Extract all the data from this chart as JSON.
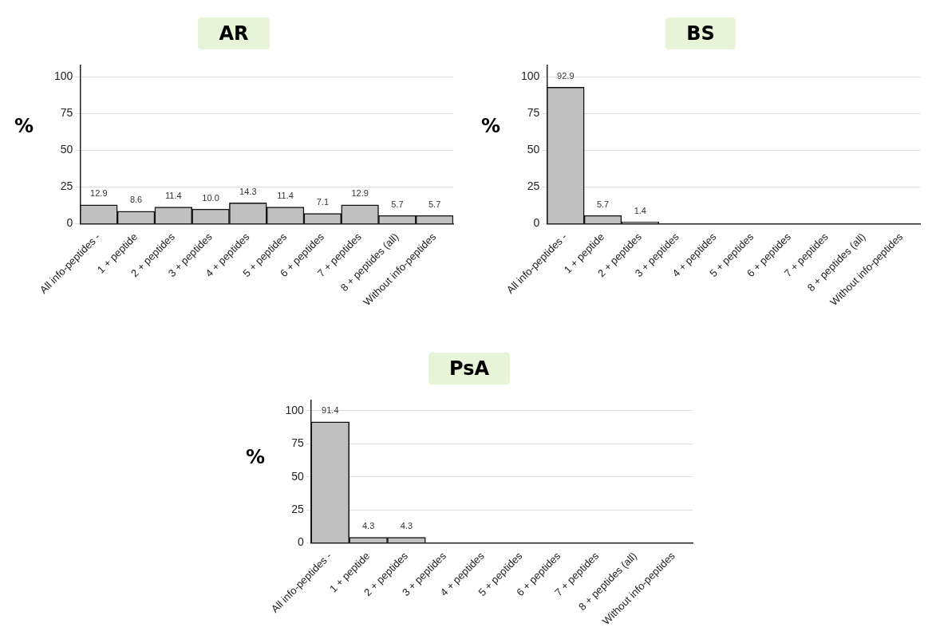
{
  "chart_data": [
    {
      "type": "bar",
      "title": "AR",
      "ylabel": "%",
      "categories": [
        "All info-peptides -",
        "1 + peptide",
        "2 + peptides",
        "3 + peptides",
        "4 + peptides",
        "5 + peptides",
        "6 + peptides",
        "7 + peptides",
        "8 + peptides (all)",
        "Without info-peptides"
      ],
      "values": [
        12.9,
        8.6,
        11.4,
        10.0,
        14.3,
        11.4,
        7.1,
        12.9,
        5.7,
        5.7
      ],
      "color": "#c0c0c0",
      "value_labels": [
        "12.9",
        "8.6",
        "11.4",
        "10.0",
        "14.3",
        "11.4",
        "7.1",
        "12.9",
        "5.7",
        "5.7"
      ],
      "ylim": [
        0,
        108
      ],
      "yticks": [
        0,
        25,
        50,
        75,
        100
      ],
      "grid": "y"
    },
    {
      "type": "bar",
      "title": "BS",
      "ylabel": "%",
      "categories": [
        "All info-peptides -",
        "1 + peptide",
        "2 + peptides",
        "3 + peptides",
        "4 + peptides",
        "5 + peptides",
        "6 + peptides",
        "7 + peptides",
        "8 + peptides (all)",
        "Without info-peptides"
      ],
      "values": [
        92.9,
        5.7,
        1.4,
        0,
        0,
        0,
        0,
        0,
        0,
        0
      ],
      "value_labels": [
        "92.9",
        "5.7",
        "1.4",
        null,
        null,
        null,
        null,
        null,
        null,
        null
      ],
      "color": "#c0c0c0",
      "ylim": [
        0,
        108
      ],
      "yticks": [
        0,
        25,
        50,
        75,
        100
      ],
      "grid": "y"
    },
    {
      "type": "bar",
      "title": "PsA",
      "ylabel": "%",
      "categories": [
        "All info-peptides -",
        "1 + peptide",
        "2 + peptides",
        "3 + peptides",
        "4 + peptides",
        "5 + peptides",
        "6 + peptides",
        "7 + peptides",
        "8 + peptides (all)",
        "Without info-peptides"
      ],
      "values": [
        91.4,
        4.3,
        4.3,
        0,
        0,
        0,
        0,
        0,
        0,
        0
      ],
      "value_labels": [
        "91.4",
        "4.3",
        "4.3",
        null,
        null,
        null,
        null,
        null,
        null,
        null
      ],
      "color": "#c0c0c0",
      "ylim": [
        0,
        108
      ],
      "yticks": [
        0,
        25,
        50,
        75,
        100
      ],
      "grid": "y"
    }
  ]
}
